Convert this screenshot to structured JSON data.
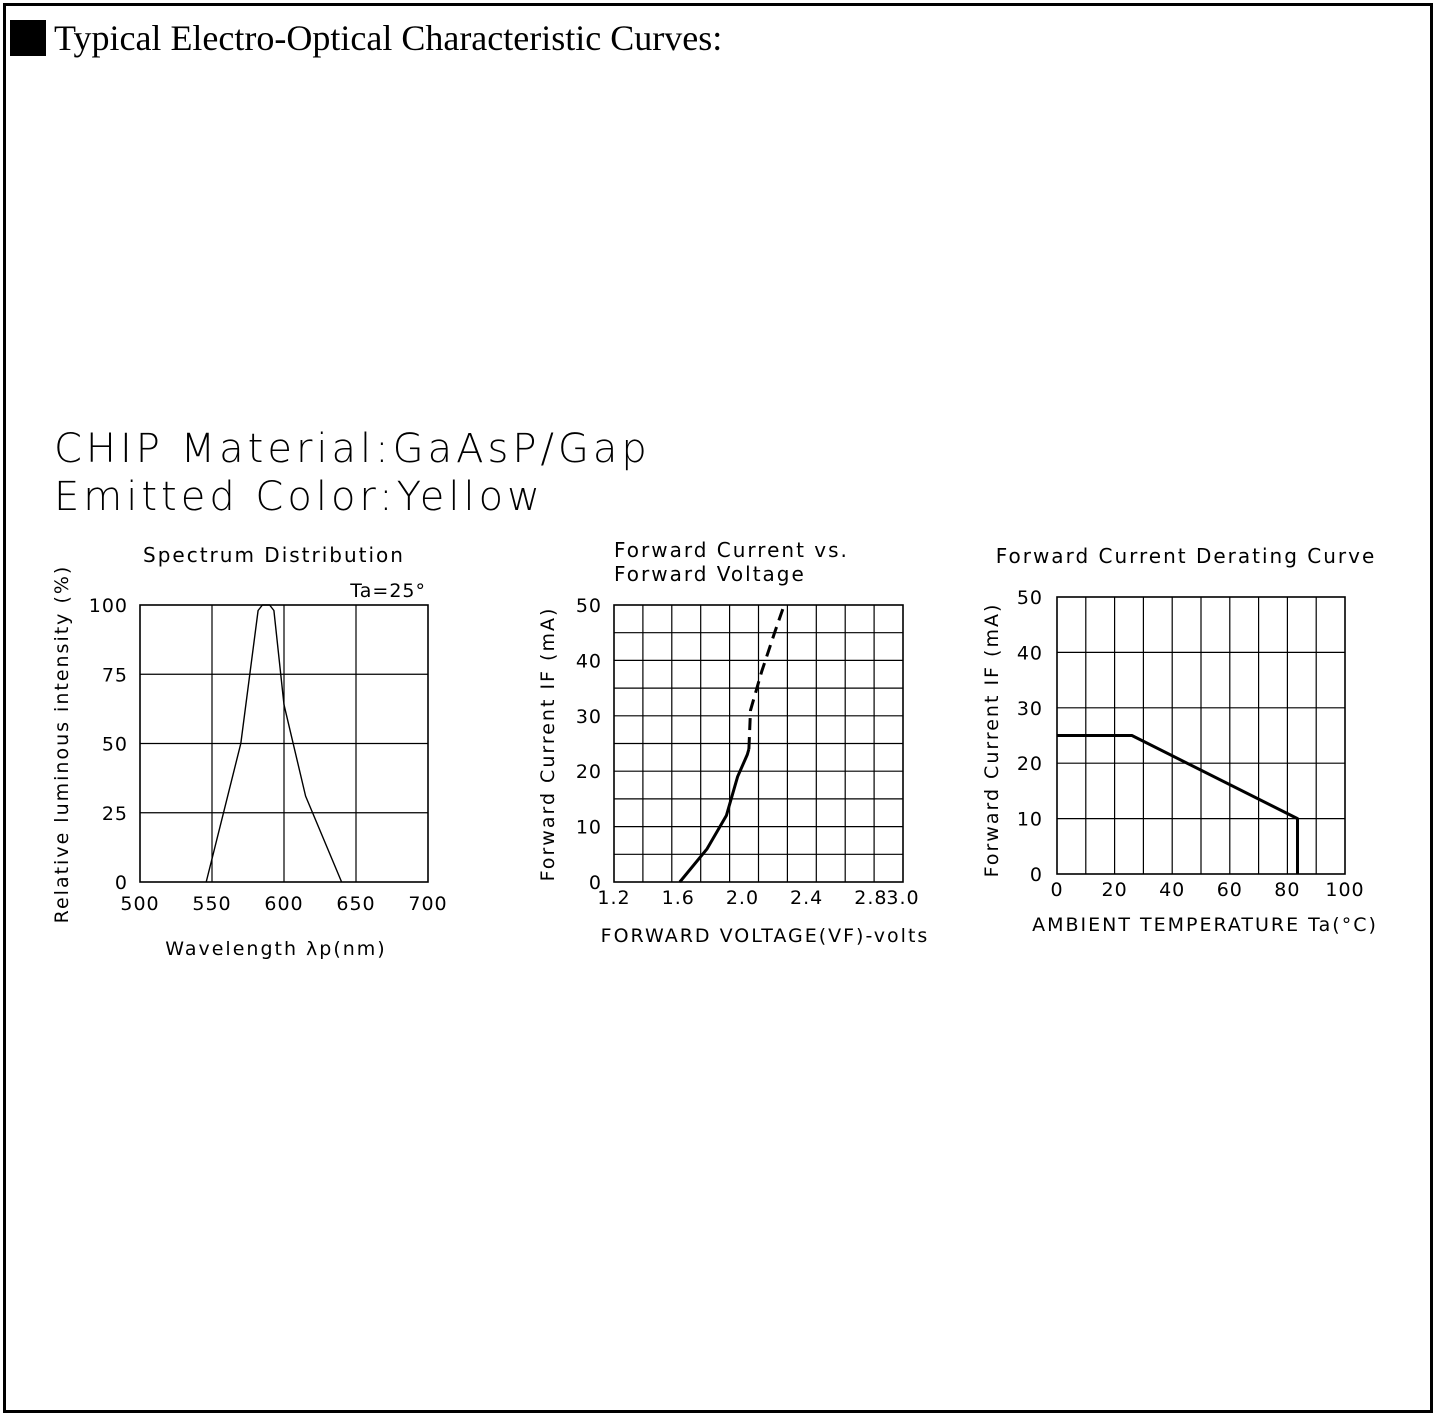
{
  "heading": {
    "text": "Typical Electro-Optical Characteristic Curves:"
  },
  "chip": {
    "material": "CHIP Material:GaAsP/Gap",
    "color": "Emitted Color:Yellow"
  },
  "chart_data": [
    {
      "type": "line",
      "title": "Spectrum Distribution",
      "annotation": "Ta=25°",
      "xlabel": "Wavelength λp(nm)",
      "ylabel": "Relative luminous intensity (%)",
      "xlim": [
        500,
        700
      ],
      "ylim": [
        0,
        100
      ],
      "xticks": [
        500,
        550,
        600,
        650,
        700
      ],
      "yticks": [
        0,
        25,
        50,
        75,
        100
      ],
      "x_ticklabels": [
        "500",
        "550",
        "600",
        "650",
        "700"
      ],
      "y_ticklabels": [
        "0",
        "25",
        "50",
        "75",
        "100"
      ],
      "grid": true,
      "series": [
        {
          "style": "thin",
          "x": [
            546,
            558,
            570,
            582,
            585,
            590,
            593,
            600,
            615,
            640
          ],
          "y": [
            0,
            25,
            50,
            98,
            100,
            100,
            98,
            64,
            31,
            0
          ]
        }
      ]
    },
    {
      "type": "line",
      "title": "Forward Current vs.",
      "subtitle": "Forward Voltage",
      "xlabel": "FORWARD VOLTAGE(VF)-volts",
      "ylabel": "Forward Current IF (mA)",
      "xlim": [
        1.2,
        3.0
      ],
      "ylim": [
        0,
        50
      ],
      "xticks": [
        1.2,
        1.6,
        2.0,
        2.4,
        2.8,
        3.0
      ],
      "yticks": [
        0,
        10,
        20,
        30,
        40,
        50
      ],
      "x_ticklabels": [
        "1.2",
        "1.6",
        "2.0",
        "2.4",
        "2.8",
        "3.0"
      ],
      "y_ticklabels": [
        "0",
        "10",
        "20",
        "30",
        "40",
        "50"
      ],
      "grid": true,
      "series": [
        {
          "style": "solid",
          "x": [
            1.61,
            1.78,
            1.9,
            1.97,
            2.03,
            2.04
          ],
          "y": [
            0,
            6,
            12,
            19,
            23,
            24
          ]
        },
        {
          "style": "dashed",
          "x": [
            2.04,
            2.05,
            2.12,
            2.2,
            2.26
          ],
          "y": [
            24,
            31,
            38,
            45,
            50
          ]
        }
      ]
    },
    {
      "type": "line",
      "title": "Forward Current Derating Curve",
      "xlabel": "AMBIENT TEMPERATURE Ta(°C)",
      "ylabel": "Forward Current IF (mA)",
      "xlim": [
        0,
        100
      ],
      "ylim": [
        0,
        50
      ],
      "xticks": [
        0,
        20,
        40,
        60,
        80,
        100
      ],
      "yticks": [
        0,
        10,
        20,
        30,
        40,
        50
      ],
      "x_ticklabels": [
        "0",
        "20",
        "40",
        "60",
        "80",
        "100"
      ],
      "y_ticklabels": [
        "0",
        "10",
        "20",
        "30",
        "40",
        "50"
      ],
      "grid": true,
      "series": [
        {
          "style": "solid",
          "x": [
            0,
            26,
            83.5,
            83.5
          ],
          "y": [
            25,
            25,
            10,
            0
          ]
        }
      ]
    }
  ]
}
